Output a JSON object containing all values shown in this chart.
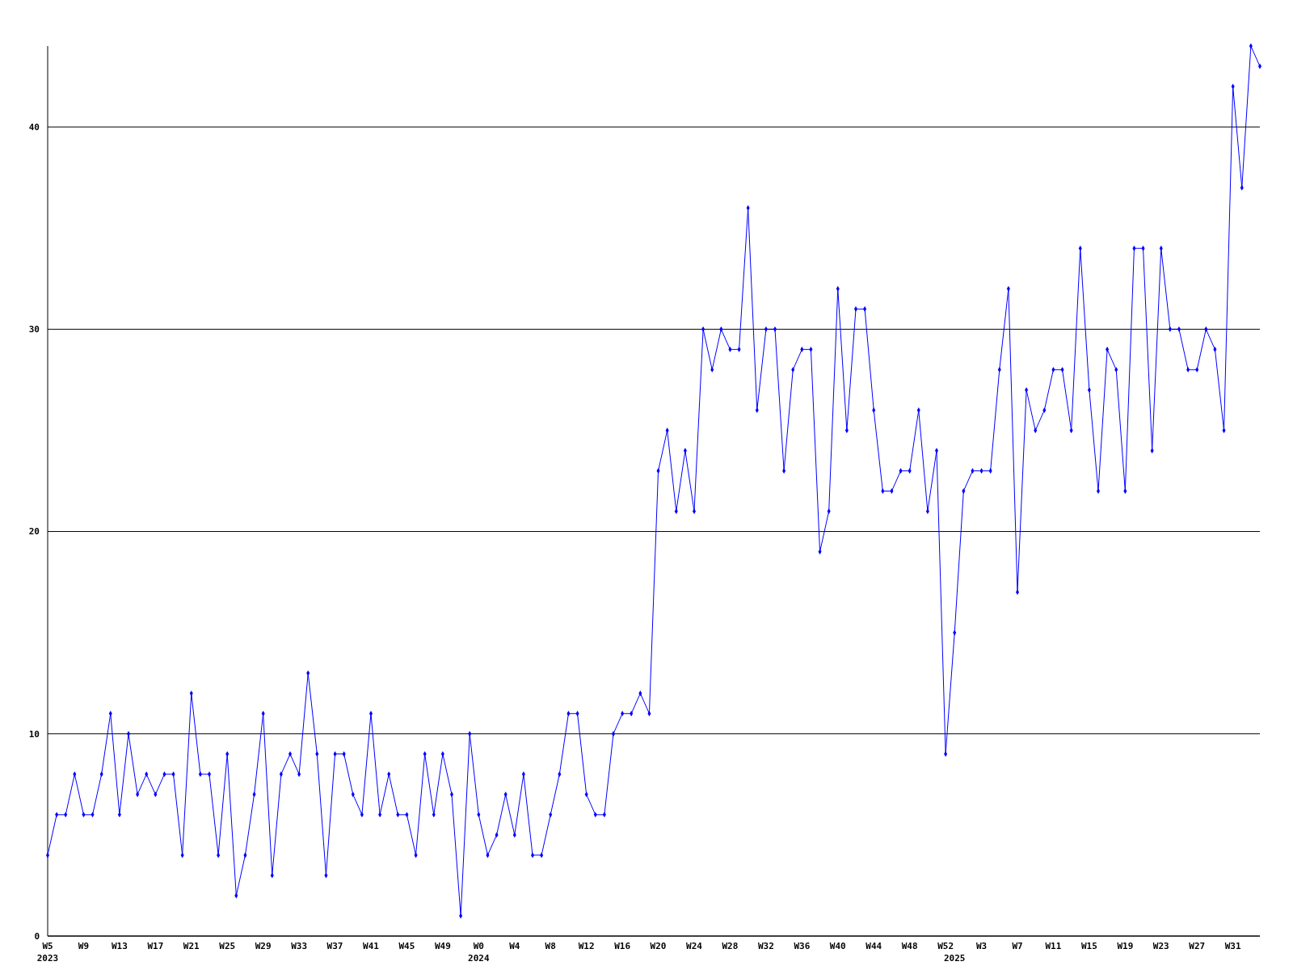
{
  "chart_data": {
    "type": "line",
    "categories": [
      "W5\n2023",
      null,
      null,
      null,
      "W9",
      null,
      null,
      null,
      "W13",
      null,
      null,
      null,
      "W17",
      null,
      null,
      null,
      "W21",
      null,
      null,
      null,
      "W25",
      null,
      null,
      null,
      "W29",
      null,
      null,
      null,
      "W33",
      null,
      null,
      null,
      "W37",
      null,
      null,
      null,
      "W41",
      null,
      null,
      null,
      "W45",
      null,
      null,
      null,
      "W49",
      null,
      null,
      null,
      "W0\n2024",
      null,
      null,
      null,
      "W4",
      null,
      null,
      null,
      "W8",
      null,
      null,
      null,
      "W12",
      null,
      null,
      null,
      "W16",
      null,
      null,
      null,
      "W20",
      null,
      null,
      null,
      "W24",
      null,
      null,
      null,
      "W28",
      null,
      null,
      null,
      "W32",
      null,
      null,
      null,
      "W36",
      null,
      null,
      null,
      "W40",
      null,
      null,
      null,
      "W44",
      null,
      null,
      null,
      "W48",
      null,
      null,
      null,
      "W52",
      "\n2025",
      null,
      null,
      "W3",
      null,
      null,
      null,
      "W7",
      null,
      null,
      null,
      "W11",
      null,
      null,
      null,
      "W15",
      null,
      null,
      null,
      "W19",
      null,
      null,
      null,
      "W23",
      null,
      null,
      null,
      "W27",
      null,
      null,
      null,
      "W31",
      null,
      null,
      null
    ],
    "series": [
      {
        "color": "#0000ff",
        "values": [
          4,
          6,
          6,
          8,
          6,
          6,
          8,
          11,
          6,
          10,
          7,
          8,
          7,
          8,
          8,
          4,
          12,
          8,
          8,
          4,
          9,
          2,
          4,
          7,
          11,
          3,
          8,
          9,
          8,
          13,
          9,
          3,
          9,
          9,
          7,
          6,
          11,
          6,
          8,
          6,
          6,
          4,
          9,
          6,
          9,
          7,
          1,
          10,
          6,
          4,
          5,
          7,
          5,
          8,
          4,
          4,
          6,
          8,
          11,
          11,
          7,
          6,
          6,
          10,
          11,
          11,
          12,
          11,
          23,
          25,
          21,
          24,
          21,
          30,
          28,
          30,
          29,
          29,
          36,
          26,
          30,
          30,
          23,
          28,
          29,
          29,
          19,
          21,
          32,
          25,
          31,
          31,
          26,
          22,
          22,
          23,
          23,
          26,
          21,
          24,
          9,
          15,
          22,
          23,
          23,
          23,
          28,
          32,
          17,
          27,
          25,
          26,
          28,
          28,
          25,
          34,
          27,
          22,
          29,
          28,
          22,
          34,
          34,
          24,
          34,
          30,
          30,
          28,
          28,
          30,
          29,
          25,
          42,
          37,
          44,
          43
        ]
      }
    ],
    "ylim": [
      0,
      44
    ],
    "yticks": [
      0,
      10,
      20,
      30,
      40
    ],
    "grid": "y",
    "marker": "diamond",
    "line_style": "solid"
  }
}
